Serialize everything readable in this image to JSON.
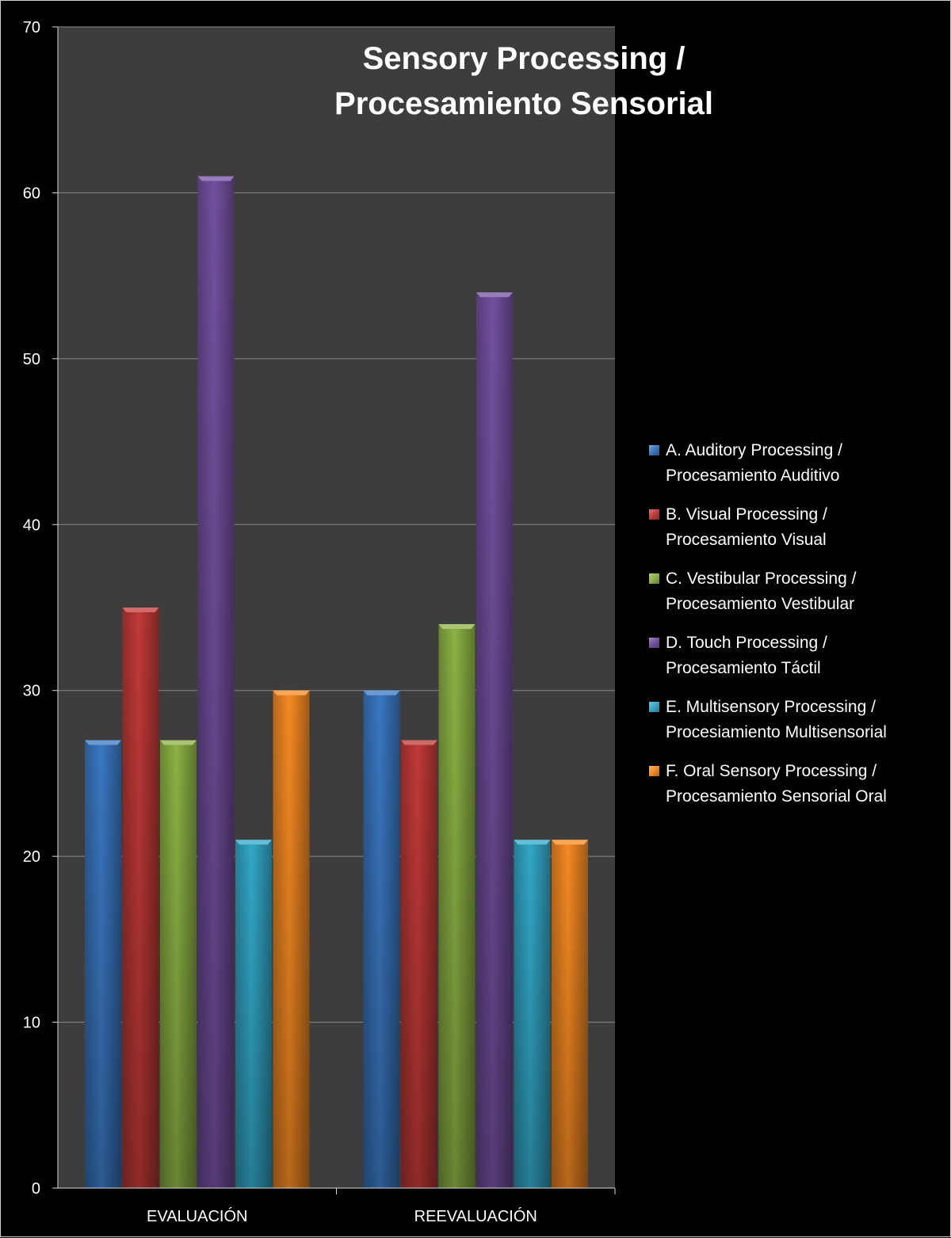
{
  "chart_data": {
    "type": "bar",
    "title": [
      "Sensory Processing /",
      "Procesamiento Sensorial"
    ],
    "categories": [
      "EVALUACIÓN",
      "REEVALUACIÓN"
    ],
    "ylim": [
      0,
      70
    ],
    "yticks": [
      "0",
      "10",
      "20",
      "30",
      "40",
      "50",
      "60",
      "70"
    ],
    "grid": true,
    "legend_position": "right",
    "series": [
      {
        "name": [
          "A. Auditory Processing /",
          "Procesamiento Auditivo"
        ],
        "values": [
          27,
          30
        ],
        "color": "#3a78c2"
      },
      {
        "name": [
          "B. Visual Processing /",
          "Procesamiento Visual"
        ],
        "values": [
          35,
          27
        ],
        "color": "#c03a37"
      },
      {
        "name": [
          "C. Vestibular Processing /",
          "Procesamiento Vestibular"
        ],
        "values": [
          27,
          34
        ],
        "color": "#8db244"
      },
      {
        "name": [
          "D. Touch Processing /",
          "Procesamiento Táctil"
        ],
        "values": [
          61,
          54
        ],
        "color": "#7350a0"
      },
      {
        "name": [
          "E. Multisensory Processing /",
          "Procesiamiento Multisensorial"
        ],
        "values": [
          21,
          21
        ],
        "color": "#32a8c8"
      },
      {
        "name": [
          "F. Oral Sensory Processing /",
          "Procesamiento Sensorial Oral"
        ],
        "values": [
          30,
          21
        ],
        "color": "#f58a22"
      }
    ]
  }
}
